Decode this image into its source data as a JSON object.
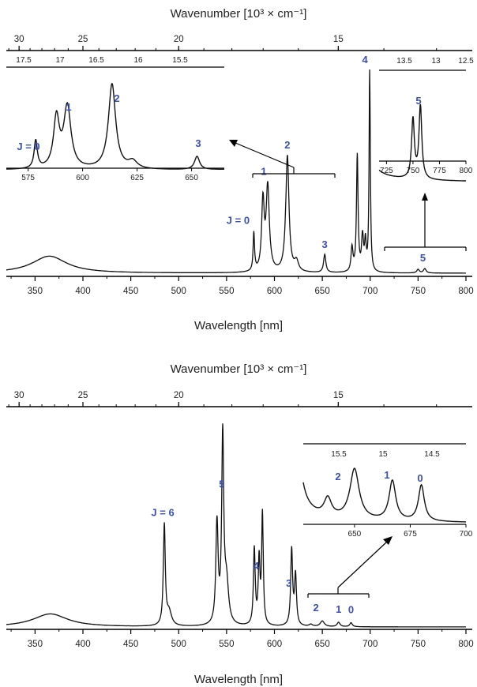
{
  "colors": {
    "axis": "#000000",
    "trace": "#111111",
    "label": "#3a4fb4"
  },
  "chart_data": [
    {
      "type": "line",
      "title": "",
      "xlabel": "Wavelength [nm]",
      "xlabel_top": "Wavenumber [10³ × cm⁻¹]",
      "xlim": [
        320,
        800
      ],
      "x_ticks": [
        "350",
        "400",
        "450",
        "500",
        "550",
        "600",
        "650",
        "700",
        "750",
        "800"
      ],
      "top_ticks": [
        "30",
        "25",
        "20",
        "15"
      ],
      "top_tick_values": [
        30,
        25,
        20,
        15
      ],
      "peaks": [
        {
          "x": 365,
          "height": 0.085,
          "width": 22
        },
        {
          "x": 578.5,
          "height": 0.19,
          "width": 0.9
        },
        {
          "x": 588,
          "height": 0.34,
          "width": 1.6
        },
        {
          "x": 593,
          "height": 0.42,
          "width": 2.0
        },
        {
          "x": 613.5,
          "height": 0.58,
          "width": 2.0
        },
        {
          "x": 623,
          "height": 0.05,
          "width": 2.5
        },
        {
          "x": 652.5,
          "height": 0.09,
          "width": 1.4
        },
        {
          "x": 681,
          "height": 0.12,
          "width": 1.2
        },
        {
          "x": 686.5,
          "height": 0.58,
          "width": 1.0
        },
        {
          "x": 692,
          "height": 0.17,
          "width": 1.2
        },
        {
          "x": 695,
          "height": 0.14,
          "width": 1.0
        },
        {
          "x": 699.5,
          "height": 1.0,
          "width": 0.75
        },
        {
          "x": 750,
          "height": 0.018,
          "width": 1.6
        },
        {
          "x": 757,
          "height": 0.022,
          "width": 1.6
        }
      ],
      "peak_labels": [
        {
          "text": "J = 0",
          "x": 578.5
        },
        {
          "text": "1",
          "x": 593
        },
        {
          "text": "2",
          "x": 613.5
        },
        {
          "text": "3",
          "x": 652.5
        },
        {
          "text": "4",
          "x": 699.5
        },
        {
          "text": "5",
          "x": 755
        }
      ],
      "insets": [
        {
          "xlim": [
            565,
            665
          ],
          "x_ticks": [
            "575",
            "600",
            "625",
            "650"
          ],
          "top_ticks": [
            "17.5",
            "17",
            "16.5",
            "16",
            "15.5"
          ],
          "labels": [
            "J = 0",
            "1",
            "2",
            "3"
          ]
        },
        {
          "xlim": [
            718,
            800
          ],
          "x_ticks": [
            "725",
            "750",
            "775",
            "800"
          ],
          "top_ticks": [
            "13.5",
            "13",
            "12.5"
          ],
          "labels": [
            "5"
          ]
        }
      ]
    },
    {
      "type": "line",
      "title": "",
      "xlabel": "Wavelength [nm]",
      "xlabel_top": "Wavenumber [10³ × cm⁻¹]",
      "xlim": [
        320,
        800
      ],
      "x_ticks": [
        "350",
        "400",
        "450",
        "500",
        "550",
        "600",
        "650",
        "700",
        "750",
        "800"
      ],
      "top_ticks": [
        "30",
        "25",
        "20",
        "15"
      ],
      "top_tick_values": [
        30,
        25,
        20,
        15
      ],
      "peaks": [
        {
          "x": 366,
          "height": 0.065,
          "width": 22
        },
        {
          "x": 485,
          "height": 0.5,
          "width": 1.2
        },
        {
          "x": 490,
          "height": 0.07,
          "width": 3
        },
        {
          "x": 540,
          "height": 0.5,
          "width": 1.4
        },
        {
          "x": 546,
          "height": 0.93,
          "width": 1.3
        },
        {
          "x": 550,
          "height": 0.2,
          "width": 2.5
        },
        {
          "x": 579,
          "height": 0.38,
          "width": 1.1
        },
        {
          "x": 584,
          "height": 0.32,
          "width": 1.1
        },
        {
          "x": 587.5,
          "height": 0.55,
          "width": 1.0
        },
        {
          "x": 618,
          "height": 0.38,
          "width": 1.2
        },
        {
          "x": 622,
          "height": 0.25,
          "width": 1.2
        },
        {
          "x": 638,
          "height": 0.01,
          "width": 2
        },
        {
          "x": 650,
          "height": 0.028,
          "width": 2.5
        },
        {
          "x": 667,
          "height": 0.022,
          "width": 1.8
        },
        {
          "x": 680,
          "height": 0.02,
          "width": 1.6
        }
      ],
      "peak_labels": [
        {
          "text": "J = 6",
          "x": 485
        },
        {
          "text": "5",
          "x": 545
        },
        {
          "text": "4",
          "x": 586
        },
        {
          "text": "3",
          "x": 620
        },
        {
          "text": "2",
          "x": 650
        },
        {
          "text": "1",
          "x": 667
        },
        {
          "text": "0",
          "x": 680
        }
      ],
      "insets": [
        {
          "xlim": [
            627,
            700
          ],
          "x_ticks": [
            "650",
            "675",
            "700"
          ],
          "top_ticks": [
            "15.5",
            "15",
            "14.5"
          ],
          "labels": [
            "2",
            "1",
            "0"
          ]
        }
      ]
    }
  ]
}
